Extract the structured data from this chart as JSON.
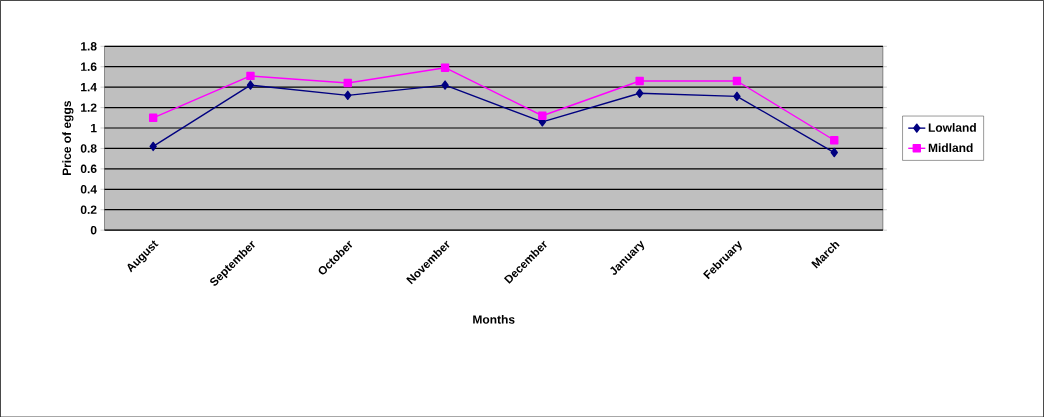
{
  "chart_data": {
    "type": "line",
    "xlabel": "Months",
    "ylabel": "Price of eggs",
    "categories": [
      "August",
      "September",
      "October",
      "November",
      "December",
      "January",
      "February",
      "March"
    ],
    "series": [
      {
        "name": "Lowland",
        "color": "#000080",
        "marker": "diamond",
        "values": [
          0.82,
          1.42,
          1.32,
          1.42,
          1.06,
          1.34,
          1.31,
          0.76
        ]
      },
      {
        "name": "Midland",
        "color": "#ff00ff",
        "marker": "square",
        "values": [
          1.1,
          1.51,
          1.44,
          1.59,
          1.12,
          1.46,
          1.46,
          0.88
        ]
      }
    ],
    "ylim": [
      0,
      1.8
    ],
    "yticks": [
      0,
      0.2,
      0.4,
      0.6,
      0.8,
      1,
      1.2,
      1.4,
      1.6,
      1.8
    ],
    "grid": "y",
    "legend": "right"
  }
}
